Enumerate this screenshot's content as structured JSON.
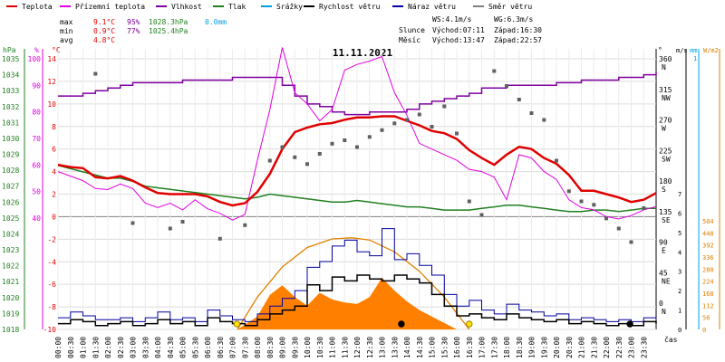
{
  "chart_data": {
    "type": "line",
    "title": "11.11.2021",
    "legend": [
      {
        "name": "Teplota",
        "color": "#e00000"
      },
      {
        "name": "Přízemní teplota",
        "color": "#e000e0"
      },
      {
        "name": "Vlhkost",
        "color": "#8000a0"
      },
      {
        "name": "Tlak",
        "color": "#208020"
      },
      {
        "name": "Srážky",
        "color": "#00a0e0"
      },
      {
        "name": "Rychlost větru",
        "color": "#000000"
      },
      {
        "name": "Náraz větru",
        "color": "#0000a0"
      },
      {
        "name": "Směr větru",
        "color": "#808080"
      }
    ],
    "stats": {
      "max_label": "max",
      "min_label": "min",
      "avg_label": "avg",
      "max_temp": "9.1°C",
      "max_hum": "95%",
      "max_press": "1028.3hPa",
      "max_rain": "0.0mm",
      "min_temp": "0.9°C",
      "min_hum": "77%",
      "min_press": "1025.4hPa",
      "avg_temp": "4.8°C"
    },
    "info": {
      "ws": "WS:4.1m/s",
      "wg": "WG:6.3m/s",
      "sun_label": "Slunce",
      "sun_rise": "Východ:07:11",
      "sun_set": "Západ:16:30",
      "moon_label": "Měsíc",
      "moon_rise": "Východ:13:47",
      "moon_set": "Západ:22:57"
    },
    "axes": {
      "hpa": {
        "unit": "hPa",
        "ticks": [
          "1035",
          "1034",
          "1033",
          "1032",
          "1031",
          "1030",
          "1029",
          "1028",
          "1027",
          "1026",
          "1025",
          "1024",
          "1023",
          "1022",
          "1021",
          "1020",
          "1019",
          "1018"
        ]
      },
      "pct": {
        "unit": "%",
        "ticks": [
          "100",
          "90",
          "80",
          "70",
          "60",
          "50",
          "40"
        ]
      },
      "degc": {
        "unit": "°C",
        "ticks": [
          "14",
          "12",
          "10",
          "8",
          "6",
          "4",
          "2",
          "0",
          "-2",
          "-4",
          "-6",
          "-8",
          "-10"
        ]
      },
      "deg": {
        "unit": "°",
        "ticks": [
          "360",
          "315",
          "270",
          "225",
          "180",
          "135",
          "90",
          "45",
          "0"
        ]
      },
      "dirs": [
        "N",
        "NW",
        "W",
        "SW",
        "S",
        "SE",
        "E",
        "NE",
        "N"
      ],
      "ms": {
        "unit": "m/s",
        "ticks": [
          "7",
          "6",
          "5",
          "4",
          "3",
          "2",
          "1",
          "0"
        ]
      },
      "mm": {
        "unit": "mm",
        "ticks": [
          "1"
        ]
      },
      "wm2": {
        "unit": "W/m2",
        "ticks": [
          "504",
          "448",
          "392",
          "336",
          "280",
          "224",
          "168",
          "112",
          "56",
          "0"
        ]
      },
      "time_label": "čas",
      "time_ticks": [
        "00:00",
        "00:30",
        "01:00",
        "01:30",
        "02:00",
        "02:30",
        "03:00",
        "03:30",
        "04:00",
        "04:30",
        "05:00",
        "05:30",
        "06:00",
        "06:30",
        "07:00",
        "07:30",
        "08:00",
        "08:30",
        "09:00",
        "09:30",
        "10:00",
        "10:30",
        "11:00",
        "11:30",
        "12:00",
        "12:30",
        "13:00",
        "13:30",
        "14:00",
        "14:30",
        "15:00",
        "15:30",
        "16:00",
        "16:30",
        "17:00",
        "17:30",
        "18:00",
        "18:30",
        "19:00",
        "19:30",
        "20:00",
        "20:30",
        "21:00",
        "21:30",
        "22:00",
        "22:30",
        "23:00",
        "23:30"
      ]
    },
    "xlim": [
      0,
      24
    ],
    "series": {
      "temperature": {
        "x": [
          0,
          0.5,
          1,
          1.5,
          2,
          2.5,
          3,
          3.5,
          4,
          4.5,
          5,
          5.5,
          6,
          6.5,
          7,
          7.5,
          8,
          8.5,
          9,
          9.5,
          10,
          10.5,
          11,
          11.5,
          12,
          12.5,
          13,
          13.5,
          14,
          14.5,
          15,
          15.5,
          16,
          16.5,
          17,
          17.5,
          18,
          18.5,
          19,
          19.5,
          20,
          20.5,
          21,
          21.5,
          22,
          22.5,
          23,
          23.5,
          24
        ],
        "y": [
          4.6,
          4.4,
          4.3,
          3.5,
          3.4,
          3.6,
          3.2,
          2.6,
          2.1,
          2.0,
          2.0,
          2.0,
          1.8,
          1.3,
          1.0,
          1.2,
          2.2,
          3.8,
          6.0,
          7.5,
          7.9,
          8.2,
          8.3,
          8.6,
          8.8,
          8.8,
          8.9,
          8.9,
          8.5,
          8.1,
          7.6,
          7.4,
          6.9,
          5.9,
          5.2,
          4.6,
          5.5,
          6.2,
          6.0,
          5.2,
          4.7,
          3.7,
          2.3,
          2.3,
          2.0,
          1.7,
          1.3,
          1.5,
          2.1
        ]
      },
      "ground_temperature": {
        "x": [
          0,
          0.5,
          1,
          1.5,
          2,
          2.5,
          3,
          3.5,
          4,
          4.5,
          5,
          5.5,
          6,
          6.5,
          7,
          7.5,
          8,
          8.5,
          9,
          9.5,
          10,
          10.5,
          11,
          11.5,
          12,
          12.5,
          13,
          13.5,
          14,
          14.5,
          15,
          15.5,
          16,
          16.5,
          17,
          17.5,
          18,
          18.5,
          19,
          19.5,
          20,
          20.5,
          21,
          21.5,
          22,
          22.5,
          23,
          23.5,
          24
        ],
        "y": [
          4.0,
          3.6,
          3.2,
          2.5,
          2.4,
          2.9,
          2.5,
          1.2,
          0.8,
          1.2,
          0.6,
          1.5,
          0.7,
          0.3,
          -0.3,
          0.2,
          5.0,
          9.5,
          15.0,
          11.0,
          10.0,
          8.5,
          9.5,
          13.0,
          13.5,
          13.8,
          14.2,
          11.0,
          9.0,
          6.5,
          6.0,
          5.5,
          5.0,
          4.2,
          4.0,
          3.5,
          1.5,
          5.5,
          5.2,
          4.0,
          3.3,
          1.5,
          0.8,
          0.6,
          0.0,
          -0.2,
          0.1,
          0.6,
          0.9
        ]
      },
      "humidity": {
        "x": [
          0,
          0.5,
          1,
          1.5,
          2,
          2.5,
          3,
          3.5,
          4,
          4.5,
          5,
          5.5,
          6,
          6.5,
          7,
          7.5,
          8,
          8.5,
          9,
          9.5,
          10,
          10.5,
          11,
          11.5,
          12,
          12.5,
          13,
          13.5,
          14,
          14.5,
          15,
          15.5,
          16,
          16.5,
          17,
          17.5,
          18,
          18.5,
          19,
          19.5,
          20,
          20.5,
          21,
          21.5,
          22,
          22.5,
          23,
          23.5,
          24
        ],
        "y": [
          86,
          86,
          87,
          88,
          89,
          90,
          91,
          91,
          91,
          91,
          92,
          92,
          92,
          92,
          93,
          93,
          93,
          93,
          90,
          86,
          83,
          82,
          80,
          79,
          79,
          80,
          80,
          80,
          81,
          83,
          84,
          85,
          86,
          87,
          89,
          89,
          90,
          90,
          90,
          90,
          91,
          91,
          92,
          92,
          92,
          93,
          93,
          94,
          95
        ]
      },
      "pressure": {
        "x": [
          0,
          0.5,
          1,
          1.5,
          2,
          2.5,
          3,
          3.5,
          4,
          4.5,
          5,
          5.5,
          6,
          6.5,
          7,
          7.5,
          8,
          8.5,
          9,
          9.5,
          10,
          10.5,
          11,
          11.5,
          12,
          12.5,
          13,
          13.5,
          14,
          14.5,
          15,
          15.5,
          16,
          16.5,
          17,
          17.5,
          18,
          18.5,
          19,
          19.5,
          20,
          20.5,
          21,
          21.5,
          22,
          22.5,
          23,
          23.5,
          24
        ],
        "y": [
          1028.3,
          1028.1,
          1027.9,
          1027.7,
          1027.5,
          1027.5,
          1027.3,
          1027.0,
          1026.9,
          1026.8,
          1026.7,
          1026.6,
          1026.5,
          1026.4,
          1026.3,
          1026.2,
          1026.3,
          1026.5,
          1026.4,
          1026.3,
          1026.2,
          1026.1,
          1026.0,
          1026.0,
          1026.1,
          1026.0,
          1025.9,
          1025.8,
          1025.7,
          1025.7,
          1025.6,
          1025.5,
          1025.5,
          1025.5,
          1025.6,
          1025.7,
          1025.8,
          1025.8,
          1025.7,
          1025.6,
          1025.5,
          1025.4,
          1025.4,
          1025.5,
          1025.5,
          1025.4,
          1025.5,
          1025.6,
          1025.6
        ]
      },
      "wind_speed": {
        "x": [
          0,
          0.5,
          1,
          1.5,
          2,
          2.5,
          3,
          3.5,
          4,
          4.5,
          5,
          5.5,
          6,
          6.5,
          7,
          7.5,
          8,
          8.5,
          9,
          9.5,
          10,
          10.5,
          11,
          11.5,
          12,
          12.5,
          13,
          13.5,
          14,
          14.5,
          15,
          15.5,
          16,
          16.5,
          17,
          17.5,
          18,
          18.5,
          19,
          19.5,
          20,
          20.5,
          21,
          21.5,
          22,
          22.5,
          23,
          23.5,
          24
        ],
        "y": [
          0.3,
          0.5,
          0.4,
          0.2,
          0.3,
          0.4,
          0.2,
          0.3,
          0.5,
          0.3,
          0.4,
          0.2,
          0.6,
          0.4,
          0.3,
          0.2,
          0.5,
          0.8,
          1.0,
          1.2,
          2.3,
          2.0,
          2.7,
          2.5,
          2.8,
          2.6,
          2.5,
          2.8,
          2.6,
          2.4,
          1.8,
          1.2,
          0.7,
          0.8,
          0.6,
          0.5,
          0.8,
          0.6,
          0.5,
          0.4,
          0.5,
          0.3,
          0.4,
          0.3,
          0.2,
          0.3,
          0.2,
          0.4,
          0.3
        ]
      },
      "wind_gust": {
        "x": [
          0,
          0.5,
          1,
          1.5,
          2,
          2.5,
          3,
          3.5,
          4,
          4.5,
          5,
          5.5,
          6,
          6.5,
          7,
          7.5,
          8,
          8.5,
          9,
          9.5,
          10,
          10.5,
          11,
          11.5,
          12,
          12.5,
          13,
          13.5,
          14,
          14.5,
          15,
          15.5,
          16,
          16.5,
          17,
          17.5,
          18,
          18.5,
          19,
          19.5,
          20,
          20.5,
          21,
          21.5,
          22,
          22.5,
          23,
          23.5,
          24
        ],
        "y": [
          0.6,
          0.9,
          0.7,
          0.5,
          0.5,
          0.6,
          0.4,
          0.6,
          0.9,
          0.5,
          0.6,
          0.4,
          1.0,
          0.7,
          0.5,
          0.4,
          0.8,
          1.2,
          1.6,
          2.0,
          3.2,
          3.5,
          4.3,
          4.6,
          4.0,
          3.8,
          5.2,
          3.6,
          3.9,
          3.3,
          2.8,
          1.8,
          1.2,
          1.5,
          1.0,
          0.8,
          1.3,
          1.0,
          0.9,
          0.7,
          0.8,
          0.5,
          0.6,
          0.5,
          0.4,
          0.5,
          0.4,
          0.6,
          0.5
        ]
      },
      "wind_direction": {
        "x": [
          1.5,
          3,
          4.5,
          5,
          6.5,
          7.5,
          8.5,
          9,
          9.5,
          10,
          10.5,
          11,
          11.5,
          12,
          12.5,
          13,
          13.5,
          14,
          14.5,
          15,
          15.5,
          16,
          16.5,
          17,
          17.5,
          18,
          18.5,
          19,
          19.5,
          20,
          20.5,
          21,
          21.5,
          22,
          22.5,
          23,
          23.5
        ],
        "y": [
          338,
          118,
          110,
          120,
          95,
          115,
          210,
          230,
          215,
          205,
          220,
          235,
          240,
          230,
          245,
          255,
          265,
          270,
          278,
          260,
          290,
          250,
          150,
          130,
          342,
          320,
          300,
          280,
          270,
          210,
          165,
          150,
          145,
          125,
          110,
          90,
          140
        ]
      },
      "solar_radiation": {
        "x": [
          7.2,
          8,
          8.5,
          9,
          9.5,
          10,
          10.5,
          11,
          11.5,
          12,
          12.5,
          13,
          13.5,
          14,
          14.5,
          15,
          15.5,
          16
        ],
        "y": [
          0,
          60,
          160,
          205,
          150,
          110,
          170,
          140,
          125,
          118,
          150,
          240,
          180,
          130,
          90,
          60,
          30,
          0
        ]
      },
      "theoretical_radiation": {
        "x": [
          7.2,
          8,
          9,
          10,
          11,
          11.8,
          12.5,
          13.5,
          14.5,
          15.5,
          16.5
        ],
        "y": [
          0,
          150,
          290,
          380,
          420,
          425,
          415,
          360,
          270,
          150,
          0
        ]
      }
    }
  }
}
